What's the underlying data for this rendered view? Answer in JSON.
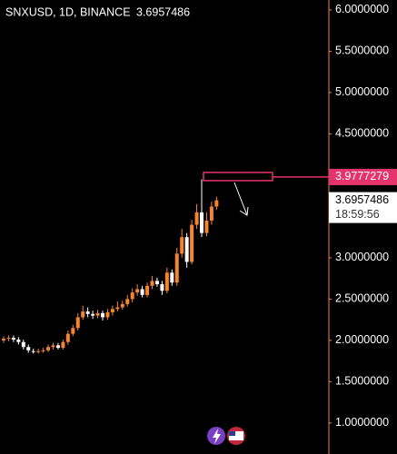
{
  "chart_data": {
    "type": "candlestick",
    "title": "SNXUSD, 1D, BINANCE",
    "last_price": 3.6957486,
    "countdown": "18:59:56",
    "annotation_price": 3.9777279,
    "up_color": "#f7852d",
    "down_color": "#ffffff",
    "axis_color": "#e8834a",
    "annotation_color": "#e5336d",
    "open": [
      2.0,
      2.02,
      2.03,
      2.01,
      1.98,
      1.92,
      1.87,
      1.86,
      1.87,
      1.88,
      1.92,
      1.94,
      1.91,
      1.98,
      2.08,
      2.15,
      2.28,
      2.35,
      2.32,
      2.3,
      2.33,
      2.28,
      2.34,
      2.38,
      2.4,
      2.44,
      2.5,
      2.58,
      2.62,
      2.55,
      2.66,
      2.72,
      2.68,
      2.6,
      2.82,
      2.7,
      3.05,
      3.25,
      2.95,
      3.4,
      3.55,
      3.3,
      3.45,
      3.62
    ],
    "high": [
      2.05,
      2.06,
      2.06,
      2.04,
      2.01,
      1.95,
      1.9,
      1.9,
      1.91,
      1.95,
      1.97,
      1.97,
      2.01,
      2.12,
      2.19,
      2.33,
      2.42,
      2.4,
      2.36,
      2.37,
      2.36,
      2.38,
      2.42,
      2.47,
      2.48,
      2.55,
      2.63,
      2.68,
      2.66,
      2.7,
      2.78,
      2.76,
      2.72,
      2.88,
      2.86,
      3.12,
      3.35,
      3.3,
      3.46,
      3.65,
      3.95,
      3.55,
      3.68,
      3.74
    ],
    "low": [
      1.97,
      1.99,
      1.98,
      1.95,
      1.89,
      1.85,
      1.84,
      1.84,
      1.85,
      1.86,
      1.89,
      1.89,
      1.89,
      1.95,
      2.05,
      2.12,
      2.25,
      2.28,
      2.26,
      2.27,
      2.24,
      2.25,
      2.3,
      2.35,
      2.37,
      2.41,
      2.46,
      2.54,
      2.52,
      2.52,
      2.62,
      2.65,
      2.55,
      2.57,
      2.66,
      2.66,
      3.0,
      2.88,
      2.92,
      3.35,
      3.25,
      3.26,
      3.4,
      3.58
    ],
    "close": [
      2.02,
      2.03,
      2.01,
      1.98,
      1.92,
      1.88,
      1.86,
      1.87,
      1.88,
      1.92,
      1.94,
      1.91,
      1.98,
      2.08,
      2.15,
      2.28,
      2.35,
      2.32,
      2.3,
      2.33,
      2.28,
      2.34,
      2.38,
      2.4,
      2.44,
      2.5,
      2.58,
      2.62,
      2.55,
      2.66,
      2.72,
      2.68,
      2.6,
      2.82,
      2.7,
      3.05,
      3.25,
      2.95,
      3.4,
      3.55,
      3.3,
      3.45,
      3.62,
      3.6957486
    ],
    "ylim": [
      0.68,
      6.12
    ],
    "yticks": [
      {
        "value": 6,
        "label": "6.0000000"
      },
      {
        "value": 5.5,
        "label": "5.5000000"
      },
      {
        "value": 5,
        "label": "5.0000000"
      },
      {
        "value": 4.5,
        "label": "4.5000000"
      },
      {
        "value": 3,
        "label": "3.0000000"
      },
      {
        "value": 2.5,
        "label": "2.5000000"
      },
      {
        "value": 2,
        "label": "2.0000000"
      },
      {
        "value": 1.5,
        "label": "1.5000000"
      },
      {
        "value": 1,
        "label": "1.0000000"
      }
    ]
  }
}
